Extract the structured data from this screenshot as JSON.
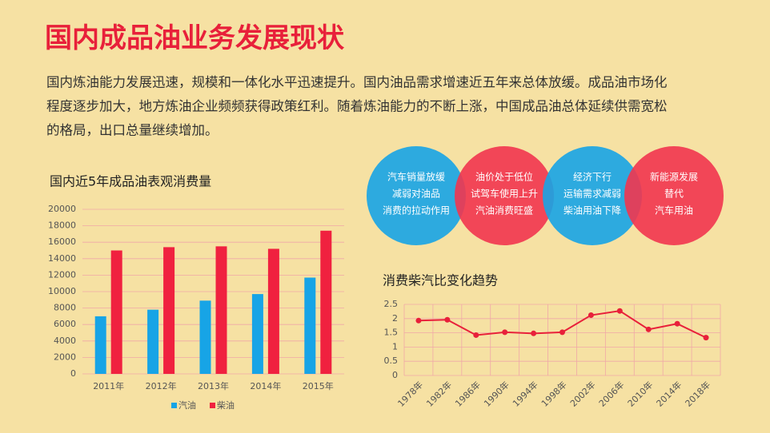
{
  "header": {
    "title": "国内成品油业务发展现状",
    "paragraph": [
      "国内炼油能力发展迅速，规模和一体化水平迅速提升。国内油品需求增速近五年来总体放缓。成品油市场化",
      "程度逐步加大，地方炼油企业频频获得政策红利。随着炼油能力的不断上涨，中国成品油总体延续供需宽松",
      "的格局，出口总量继续增加。"
    ]
  },
  "circles": [
    {
      "lines": [
        "汽车销量放缓",
        "减弱对油品",
        "消费的拉动作用"
      ],
      "color": "#17a4e6"
    },
    {
      "lines": [
        "油价处于低位",
        "试驾车使用上升",
        "汽油消费旺盛"
      ],
      "color": "#f2354f"
    },
    {
      "lines": [
        "经济下行",
        "运输需求减弱",
        "柴油用油下降"
      ],
      "color": "#17a4e6"
    },
    {
      "lines": [
        "新能源发展",
        "替代",
        "汽车用油"
      ],
      "color": "#f2354f"
    }
  ],
  "chart_data": [
    {
      "type": "bar",
      "title": "国内近5年成品油表观消费量",
      "categories": [
        "2011年",
        "2012年",
        "2013年",
        "2014年",
        "2015年"
      ],
      "series": [
        {
          "name": "汽油",
          "color": "#17a4e6",
          "values": [
            7000,
            7800,
            8900,
            9700,
            11700
          ]
        },
        {
          "name": "柴油",
          "color": "#f0213f",
          "values": [
            15000,
            15400,
            15500,
            15200,
            17400
          ]
        }
      ],
      "ylim": [
        0,
        20000
      ],
      "yticks": [
        0,
        2000,
        4000,
        6000,
        8000,
        10000,
        12000,
        14000,
        16000,
        18000,
        20000
      ],
      "grid": true
    },
    {
      "type": "line",
      "title": "消费柴汽比变化趋势",
      "categories": [
        "1978年",
        "1982年",
        "1986年",
        "1990年",
        "1994年",
        "1998年",
        "2002年",
        "2006年",
        "2010年",
        "2014年",
        "2018年"
      ],
      "series": [
        {
          "name": "柴汽比",
          "color": "#e8203a",
          "values": [
            1.93,
            1.96,
            1.42,
            1.52,
            1.48,
            1.52,
            2.12,
            2.27,
            1.62,
            1.82,
            1.33
          ]
        }
      ],
      "ylim": [
        0,
        2.5
      ],
      "yticks": [
        0,
        0.5,
        1,
        1.5,
        2,
        2.5
      ],
      "grid": true
    }
  ]
}
